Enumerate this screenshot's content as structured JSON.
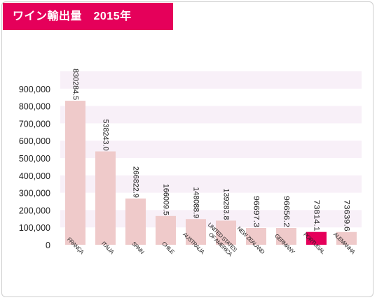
{
  "chart_data": {
    "type": "bar",
    "title": "ワイン輸出量　2015年",
    "categories": [
      "FRANÇA",
      "ITÁLIA",
      "SPAIN",
      "CHILE",
      "AUSTRALIA",
      "UNITED STATES OF AMERICA",
      "NEW ZEALAND",
      "GERMANY",
      "PORTUGAL",
      "ALEMANHA"
    ],
    "category_lines": [
      [
        "FRANÇA"
      ],
      [
        "ITÁLIA"
      ],
      [
        "SPAIN"
      ],
      [
        "CHILE"
      ],
      [
        "AUSTRALIA"
      ],
      [
        "UNITED STATES",
        "OF AMERICA"
      ],
      [
        "NEW ZEALAND"
      ],
      [
        "GERMANY"
      ],
      [
        "PORTUGAL"
      ],
      [
        "ALEMANHA"
      ]
    ],
    "values": [
      830284.5,
      538243.0,
      266822.9,
      166009.5,
      148088.9,
      139283.8,
      96697.3,
      96656.2,
      73814.1,
      73639.6
    ],
    "value_labels": [
      "830284.5",
      "538243.0",
      "266822.9",
      "166009.5",
      "148088.9",
      "139283.8",
      "96697.3",
      "96656.2",
      "73814.1",
      "73639.6"
    ],
    "highlight_index": 8,
    "ylim": [
      0,
      1000000
    ],
    "y_ticks": [
      0,
      100000,
      200000,
      300000,
      400000,
      500000,
      600000,
      700000,
      800000,
      900000
    ],
    "y_tick_labels": [
      "0",
      "100,000",
      "200,000",
      "300,000",
      "400,000",
      "500,000",
      "600,000",
      "700,000",
      "800,000",
      "900,000"
    ],
    "xlabel": "",
    "ylabel": "",
    "grid": "alternating horizontal bands",
    "colors": {
      "bar": "#efcaca",
      "highlight": "#e5005a",
      "band": "#f8f0f8",
      "title_bg": "#e5005a"
    }
  }
}
